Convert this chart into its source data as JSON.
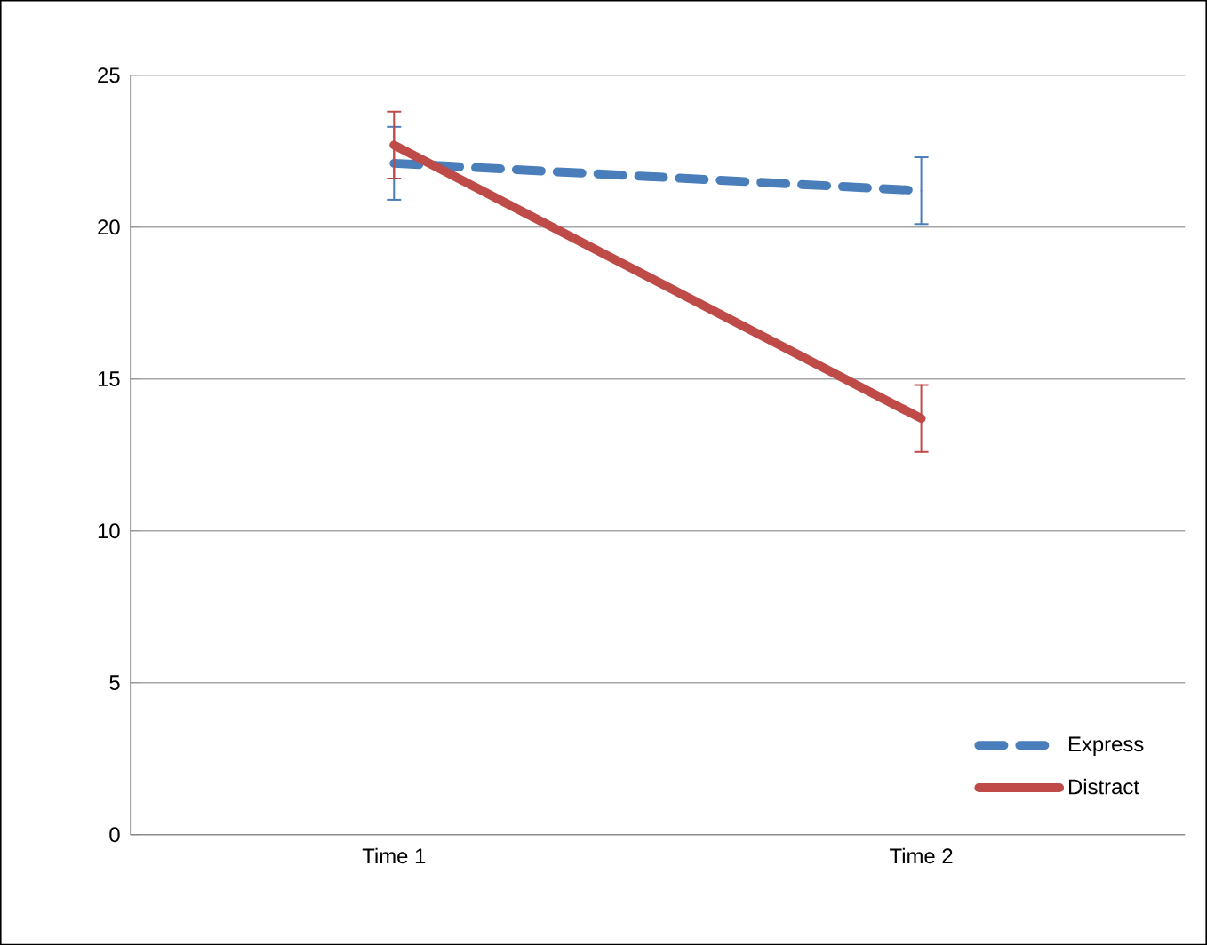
{
  "chart_data": {
    "type": "line",
    "categories": [
      "Time 1",
      "Time 2"
    ],
    "series": [
      {
        "name": "Express",
        "color": "#4a7ebb",
        "line_style": "dashed",
        "values": [
          22.1,
          21.2
        ],
        "errors": [
          1.2,
          1.1
        ]
      },
      {
        "name": "Distract",
        "color": "#be4b48",
        "line_style": "solid",
        "values": [
          22.7,
          13.7
        ],
        "errors": [
          1.1,
          1.1
        ]
      }
    ],
    "ylim": [
      0,
      25
    ],
    "yticks": [
      0,
      5,
      10,
      15,
      20,
      25
    ],
    "grid": "y",
    "legend": "bottom right",
    "marker": "none"
  }
}
